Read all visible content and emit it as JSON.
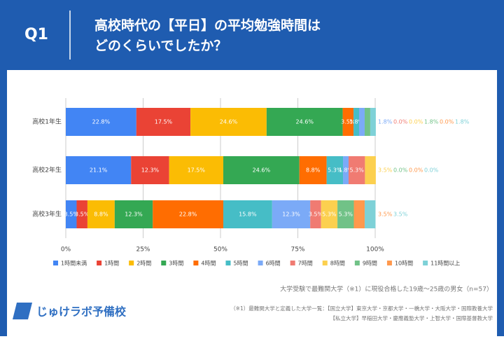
{
  "header": {
    "badge": "Q1",
    "title_lines": [
      "高校時代の【平日】の平均勉強時間は",
      "どのくらいでしたか？"
    ]
  },
  "chart_data": {
    "type": "stacked-barh",
    "categories": [
      "高校1年生",
      "高校2年生",
      "高校3年生"
    ],
    "series": [
      {
        "name": "1時間未満",
        "color": "#4285f4",
        "values": [
          22.8,
          21.1,
          3.5
        ],
        "value_labels": [
          "22.8%",
          "21.1%",
          "3.5%"
        ]
      },
      {
        "name": "1時間",
        "color": "#ea4335",
        "values": [
          17.5,
          12.3,
          3.5
        ],
        "value_labels": [
          "17.5%",
          "12.3%",
          "3.5%"
        ]
      },
      {
        "name": "2時間",
        "color": "#fbbc04",
        "values": [
          24.6,
          17.5,
          8.8
        ],
        "value_labels": [
          "24.6%",
          "17.5%",
          "8.8%"
        ]
      },
      {
        "name": "3時間",
        "color": "#34a853",
        "values": [
          24.6,
          24.6,
          12.3
        ],
        "value_labels": [
          "24.6%",
          "24.6%",
          "12.3%"
        ]
      },
      {
        "name": "4時間",
        "color": "#ff6d01",
        "values": [
          3.5,
          8.8,
          22.8
        ],
        "value_labels": [
          "3.5%",
          "8.8%",
          "22.8%"
        ]
      },
      {
        "name": "5時間",
        "color": "#46bdc6",
        "values": [
          1.8,
          5.3,
          15.8
        ],
        "value_labels": [
          "1.8%",
          "5.3%",
          "15.8%"
        ]
      },
      {
        "name": "6時間",
        "color": "#7baaf7",
        "values": [
          1.8,
          1.8,
          12.3
        ],
        "value_labels": [
          "1.8%",
          "1.8%",
          "12.3%"
        ]
      },
      {
        "name": "7時間",
        "color": "#f07b72",
        "values": [
          0.0,
          5.3,
          3.5
        ],
        "value_labels": [
          "0.0%",
          "5.3%",
          "3.5%"
        ]
      },
      {
        "name": "8時間",
        "color": "#fcd04f",
        "values": [
          0.0,
          3.5,
          5.3
        ],
        "value_labels": [
          "0.0%",
          "3.5%",
          "5.3%"
        ]
      },
      {
        "name": "9時間",
        "color": "#71c287",
        "values": [
          1.8,
          0.0,
          5.3
        ],
        "value_labels": [
          "1.8%",
          "0.0%",
          "5.3%"
        ]
      },
      {
        "name": "10時間",
        "color": "#ff994d",
        "values": [
          0.0,
          0.0,
          3.5
        ],
        "value_labels": [
          "0.0%",
          "0.0%",
          "3.5%"
        ]
      },
      {
        "name": "11時間以上",
        "color": "#7ed1d7",
        "values": [
          1.8,
          0.0,
          3.5
        ],
        "value_labels": [
          "1.8%",
          "0.0%",
          "3.5%"
        ]
      }
    ],
    "xlim": [
      0,
      100
    ],
    "xticks": [
      {
        "value": 0,
        "label": "0%"
      },
      {
        "value": 25,
        "label": "25%"
      },
      {
        "value": 50,
        "label": "50%"
      },
      {
        "value": 75,
        "label": "75%"
      },
      {
        "value": 100,
        "label": "100%"
      }
    ],
    "grid": true,
    "legend": "bottom"
  },
  "footer": {
    "notes": [
      "大学受験で最難関大学（※1）に現役合格した19歳～25歳の男女（n=57）",
      "（※1）最難関大学と定義した大学一覧：【国立大学】東京大学・京都大学・一橋大学・大阪大学・国際教養大学",
      "【私立大学】早稲田大学・慶應義塾大学・上智大学・国際基督教大学"
    ],
    "logo": "じゅけラボ予備校"
  }
}
